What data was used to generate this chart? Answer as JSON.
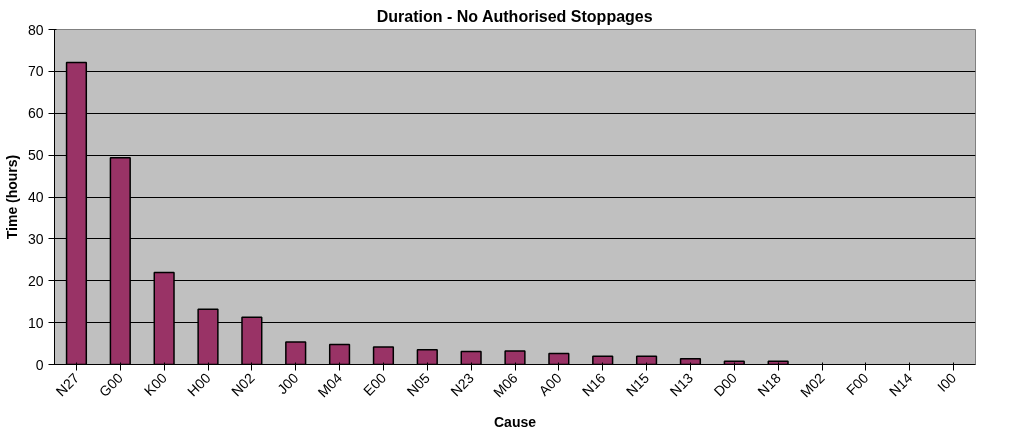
{
  "chart_data": {
    "type": "bar",
    "title": "Duration - No Authorised Stoppages",
    "xlabel": "Cause",
    "ylabel": "Time (hours)",
    "categories": [
      "N27",
      "G00",
      "K00",
      "H00",
      "N02",
      "J00",
      "M04",
      "E00",
      "N05",
      "N23",
      "M06",
      "A00",
      "N16",
      "N15",
      "N13",
      "D00",
      "N18",
      "M02",
      "F00",
      "N14",
      "I00"
    ],
    "values": [
      72.1,
      49.4,
      22,
      13.2,
      11.3,
      5.4,
      4.8,
      4.2,
      3.5,
      3.1,
      3.2,
      2.6,
      2.0,
      2.0,
      1.4,
      0.8,
      0.8,
      0,
      0,
      0,
      0
    ],
    "color": "#993366",
    "ylim": [
      0,
      80
    ],
    "yticks": [
      0,
      10,
      20,
      30,
      40,
      50,
      60,
      70,
      80
    ],
    "grid": "y"
  }
}
